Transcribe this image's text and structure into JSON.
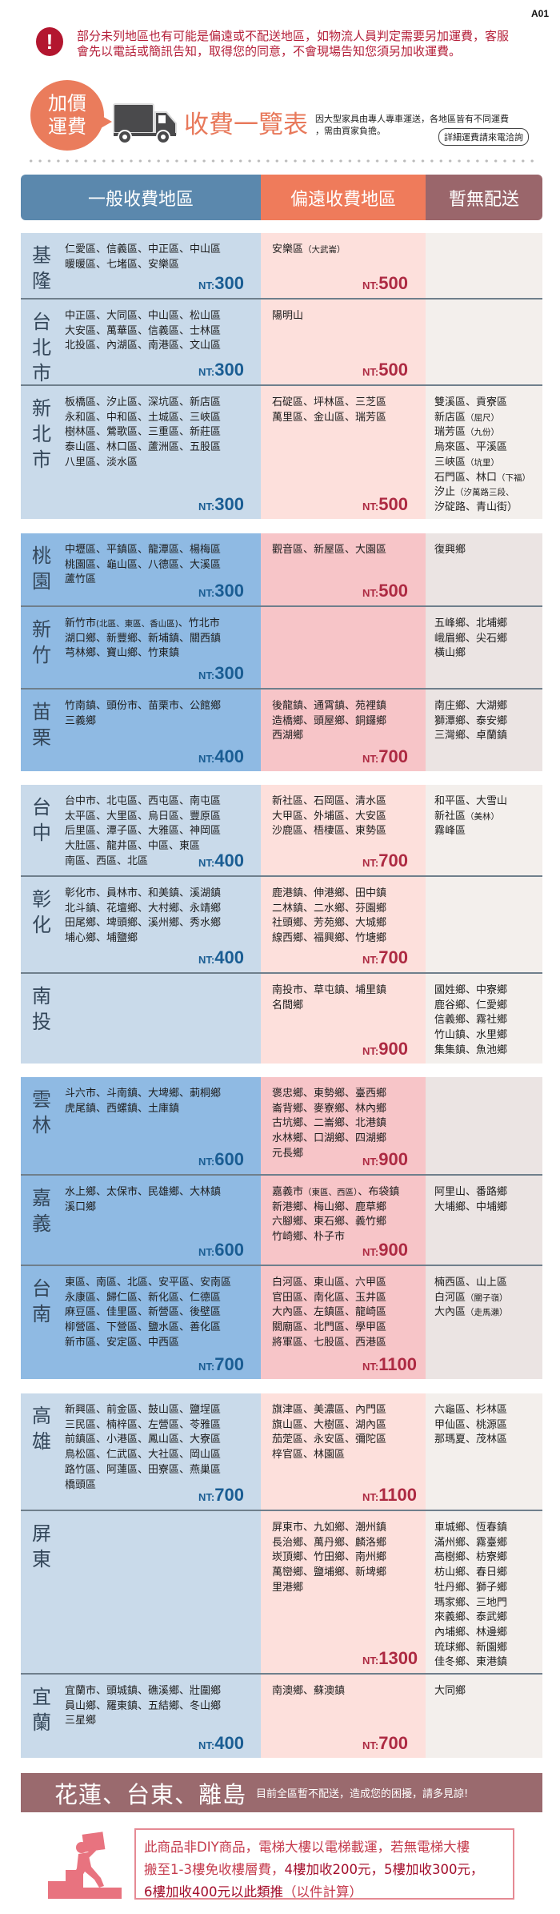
{
  "page_code": "A01",
  "alert": {
    "icon": "exclamation-circle-icon",
    "lines": [
      "部分未列地區也有可能是偏遠或不配送地區，如物流人員判定需要另加運費，客服",
      "會先以電話或簡訊告知，取得您的同意，不會現場告知您須另加收運費。"
    ]
  },
  "title": {
    "badge_lines": [
      "加價",
      "運費"
    ],
    "truck_icon": "truck-icon",
    "heading": "收費一覽表",
    "desc_lines": [
      "因大型家具由專人專車運送，各地區皆有不同運費",
      "，需由買家負擔。"
    ],
    "contact_label": "詳細運費請來電洽詢"
  },
  "table": {
    "headers": [
      "一般收費地區",
      "偏遠收費地區",
      "暫無配送"
    ],
    "price_prefix": "NT:",
    "groups": [
      [
        {
          "region": "基隆",
          "general": [
            "仁愛區、信義區、中正區、中山區",
            "暖暖區、七堵區、安樂區"
          ],
          "general_price": "300",
          "remote": [
            "安樂區（大武崙）"
          ],
          "remote_price": "500",
          "none": []
        },
        {
          "region": "台北市",
          "general": [
            "中正區、大同區、中山區、松山區",
            "大安區、萬華區、信義區、士林區",
            "北投區、內湖區、南港區、文山區"
          ],
          "general_price": "300",
          "remote": [
            "陽明山"
          ],
          "remote_price": "500",
          "none": []
        },
        {
          "region": "新北市",
          "general": [
            "板橋區、汐止區、深坑區、新店區",
            "永和區、中和區、土城區、三峽區",
            "樹林區、鶯歌區、三重區、新莊區",
            "泰山區、林口區、蘆洲區、五股區",
            "八里區、淡水區"
          ],
          "general_price": "300",
          "remote": [
            "石碇區、坪林區、三芝區",
            "萬里區、金山區、瑞芳區"
          ],
          "remote_price": "500",
          "none": [
            "雙溪區、貢寮區",
            "新店區（屈尺）",
            "瑞芳區（九份）",
            "烏來區、平溪區",
            "三峽區（坑里）",
            "石門區、林口（下福）",
            "汐止（汐萬路三段、",
            "汐碇路、青山街）"
          ]
        }
      ],
      [
        {
          "region": "桃園",
          "general": [
            "中壢區、平鎮區、龍潭區、楊梅區",
            "桃園區、龜山區、八德區、大溪區",
            "蘆竹區"
          ],
          "general_price": "300",
          "remote": [
            "觀音區、新屋區、大園區"
          ],
          "remote_price": "500",
          "none": [
            "復興鄉"
          ]
        },
        {
          "region": "新竹",
          "general": [
            "新竹市(北區、東區、香山區)、竹北市",
            "湖口鄉、新豐鄉、新埔鎮、關西鎮",
            "芎林鄉、寶山鄉、竹東鎮"
          ],
          "general_price": "300",
          "remote": [],
          "remote_price": "",
          "none": [
            "五峰鄉、北埔鄉",
            "峨眉鄉、尖石鄉",
            "橫山鄉"
          ]
        },
        {
          "region": "苗栗",
          "general": [
            "竹南鎮、頭份市、苗栗市、公館鄉",
            "三義鄉"
          ],
          "general_price": "400",
          "remote": [
            "後龍鎮、通霄鎮、苑裡鎮",
            "造橋鄉、頭屋鄉、銅鑼鄉",
            "西湖鄉"
          ],
          "remote_price": "700",
          "none": [
            "南庄鄉、大湖鄉",
            "獅潭鄉、泰安鄉",
            "三灣鄉、卓蘭鎮"
          ]
        }
      ],
      [
        {
          "region": "台中",
          "general": [
            "台中市、北屯區、西屯區、南屯區",
            "太平區、大里區、烏日區、豐原區",
            "后里區、潭子區、大雅區、神岡區",
            "大肚區、龍井區、中區、東區",
            "南區、西區、北區"
          ],
          "general_price": "400",
          "remote": [
            "新社區、石岡區、清水區",
            "大甲區、外埔區、大安區",
            "沙鹿區、梧棲區、東勢區"
          ],
          "remote_price": "700",
          "none": [
            "和平區、大雪山",
            "新社區（美林）",
            "霧峰區"
          ]
        },
        {
          "region": "彰化",
          "general": [
            "彰化市、員林市、和美鎮、溪湖鎮",
            "北斗鎮、花壇鄉、大村鄉、永靖鄉",
            "田尾鄉、埤頭鄉、溪州鄉、秀水鄉",
            "埔心鄉、埔鹽鄉"
          ],
          "general_price": "400",
          "remote": [
            "鹿港鎮、伸港鄉、田中鎮",
            "二林鎮、二水鄉、芬園鄉",
            "社頭鄉、芳苑鄉、大城鄉",
            "線西鄉、福興鄉、竹塘鄉"
          ],
          "remote_price": "700",
          "none": []
        },
        {
          "region": "南投",
          "general": [],
          "general_price": "",
          "remote": [
            "南投市、草屯鎮、埔里鎮",
            "名間鄉"
          ],
          "remote_price": "900",
          "none": [
            "國姓鄉、中寮鄉",
            "鹿谷鄉、仁愛鄉",
            "信義鄉、霧社鄉",
            "竹山鎮、水里鄉",
            "集集鎮、魚池鄉"
          ]
        }
      ],
      [
        {
          "region": "雲林",
          "general": [
            "斗六市、斗南鎮、大埤鄉、莿桐鄉",
            "虎尾鎮、西螺鎮、土庫鎮"
          ],
          "general_price": "600",
          "remote": [
            "褒忠鄉、東勢鄉、臺西鄉",
            "崙背鄉、麥寮鄉、林內鄉",
            "古坑鄉、二崙鄉、北港鎮",
            "水林鄉、口湖鄉、四湖鄉",
            "元長鄉"
          ],
          "remote_price": "900",
          "none": []
        },
        {
          "region": "嘉義",
          "general": [
            "水上鄉、太保市、民雄鄉、大林鎮",
            "溪口鄉"
          ],
          "general_price": "600",
          "remote": [
            "嘉義市（東區、西區）、布袋鎮",
            "新港鄉、梅山鄉、鹿草鄉",
            "六腳鄉、東石鄉、義竹鄉",
            "竹崎鄉、朴子市"
          ],
          "remote_price": "900",
          "none": [
            "阿里山、番路鄉",
            "大埔鄉、中埔鄉"
          ]
        },
        {
          "region": "台南",
          "general": [
            "東區、南區、北區、安平區、安南區",
            "永康區、歸仁區、新化區、仁德區",
            "麻豆區、佳里區、新營區、後壁區",
            "柳營區、下營區、鹽水區、善化區",
            "新市區、安定區、中西區"
          ],
          "general_price": "700",
          "remote": [
            "白河區、東山區、六甲區",
            "官田區、南化區、玉井區",
            "大內區、左鎮區、龍崎區",
            "關廟區、北門區、學甲區",
            "將軍區、七股區、西港區"
          ],
          "remote_price": "1100",
          "none": [
            "楠西區、山上區",
            "白河區（關子嶺）",
            "大內區（走馬瀨）"
          ]
        }
      ],
      [
        {
          "region": "高雄",
          "general": [
            "新興區、前金區、鼓山區、鹽埕區",
            "三民區、楠梓區、左營區、苓雅區",
            "前鎮區、小港區、鳳山區、大寮區",
            "鳥松區、仁武區、大社區、岡山區",
            "路竹區、阿蓮區、田寮區、燕巢區",
            "橋頭區"
          ],
          "general_price": "700",
          "remote": [
            "旗津區、美濃區、內門區",
            "旗山區、大樹區、湖內區",
            "茄萣區、永安區、彌陀區",
            "梓官區、林園區"
          ],
          "remote_price": "1100",
          "none": [
            "六龜區、杉林區",
            "甲仙區、桃源區",
            "那瑪夏、茂林區"
          ]
        },
        {
          "region": "屏東",
          "general": [],
          "general_price": "",
          "remote": [
            "屏東市、九如鄉、潮州鎮",
            "長治鄉、萬丹鄉、麟洛鄉",
            "崁頂鄉、竹田鄉、南州鄉",
            "萬巒鄉、鹽埔鄉、新埤鄉",
            "里港鄉"
          ],
          "remote_price": "1300",
          "none": [
            "車城鄉、恆春鎮",
            "滿州鄉、霧臺鄉",
            "高樹鄉、枋寮鄉",
            "枋山鄉、春日鄉",
            "牡丹鄉、獅子鄉",
            "瑪家鄉、三地門",
            "來義鄉、泰武鄉",
            "內埔鄉、林邊鄉",
            "琉球鄉、新園鄉",
            "佳冬鄉、東港鎮"
          ]
        },
        {
          "region": "宜蘭",
          "general": [
            "宜蘭市、頭城鎮、礁溪鄉、壯圍鄉",
            "員山鄉、羅東鎮、五結鄉、冬山鄉",
            "三星鄉"
          ],
          "general_price": "400",
          "remote": [
            "南澳鄉、蘇澳鎮"
          ],
          "remote_price": "700",
          "none": [
            "大同鄉"
          ]
        }
      ]
    ]
  },
  "banner": {
    "title": "花蓮、台東、離島",
    "note": "目前全區暫不配送，造成您的困擾，請多見諒!"
  },
  "floor_note": {
    "icon": "stairs-carry-icon",
    "line1": "此商品非DIY商品，電梯大樓以電梯載運，若無電梯大樓",
    "line2_a": "搬至1-3樓免收樓層費，",
    "line2_b": "4樓加收200元，5樓加收300元，",
    "line3_a": "6樓加收400元以此類推",
    "line3_b": "（以件計算）"
  },
  "colors": {
    "general_header": "#5b88ad",
    "remote_header": "#ef7b5b",
    "no_delivery_header": "#9a666b",
    "accent_orange": "#e8795b",
    "alert_red": "#b3162f",
    "general_price": "#1a5d93",
    "remote_price": "#ad2a42"
  }
}
